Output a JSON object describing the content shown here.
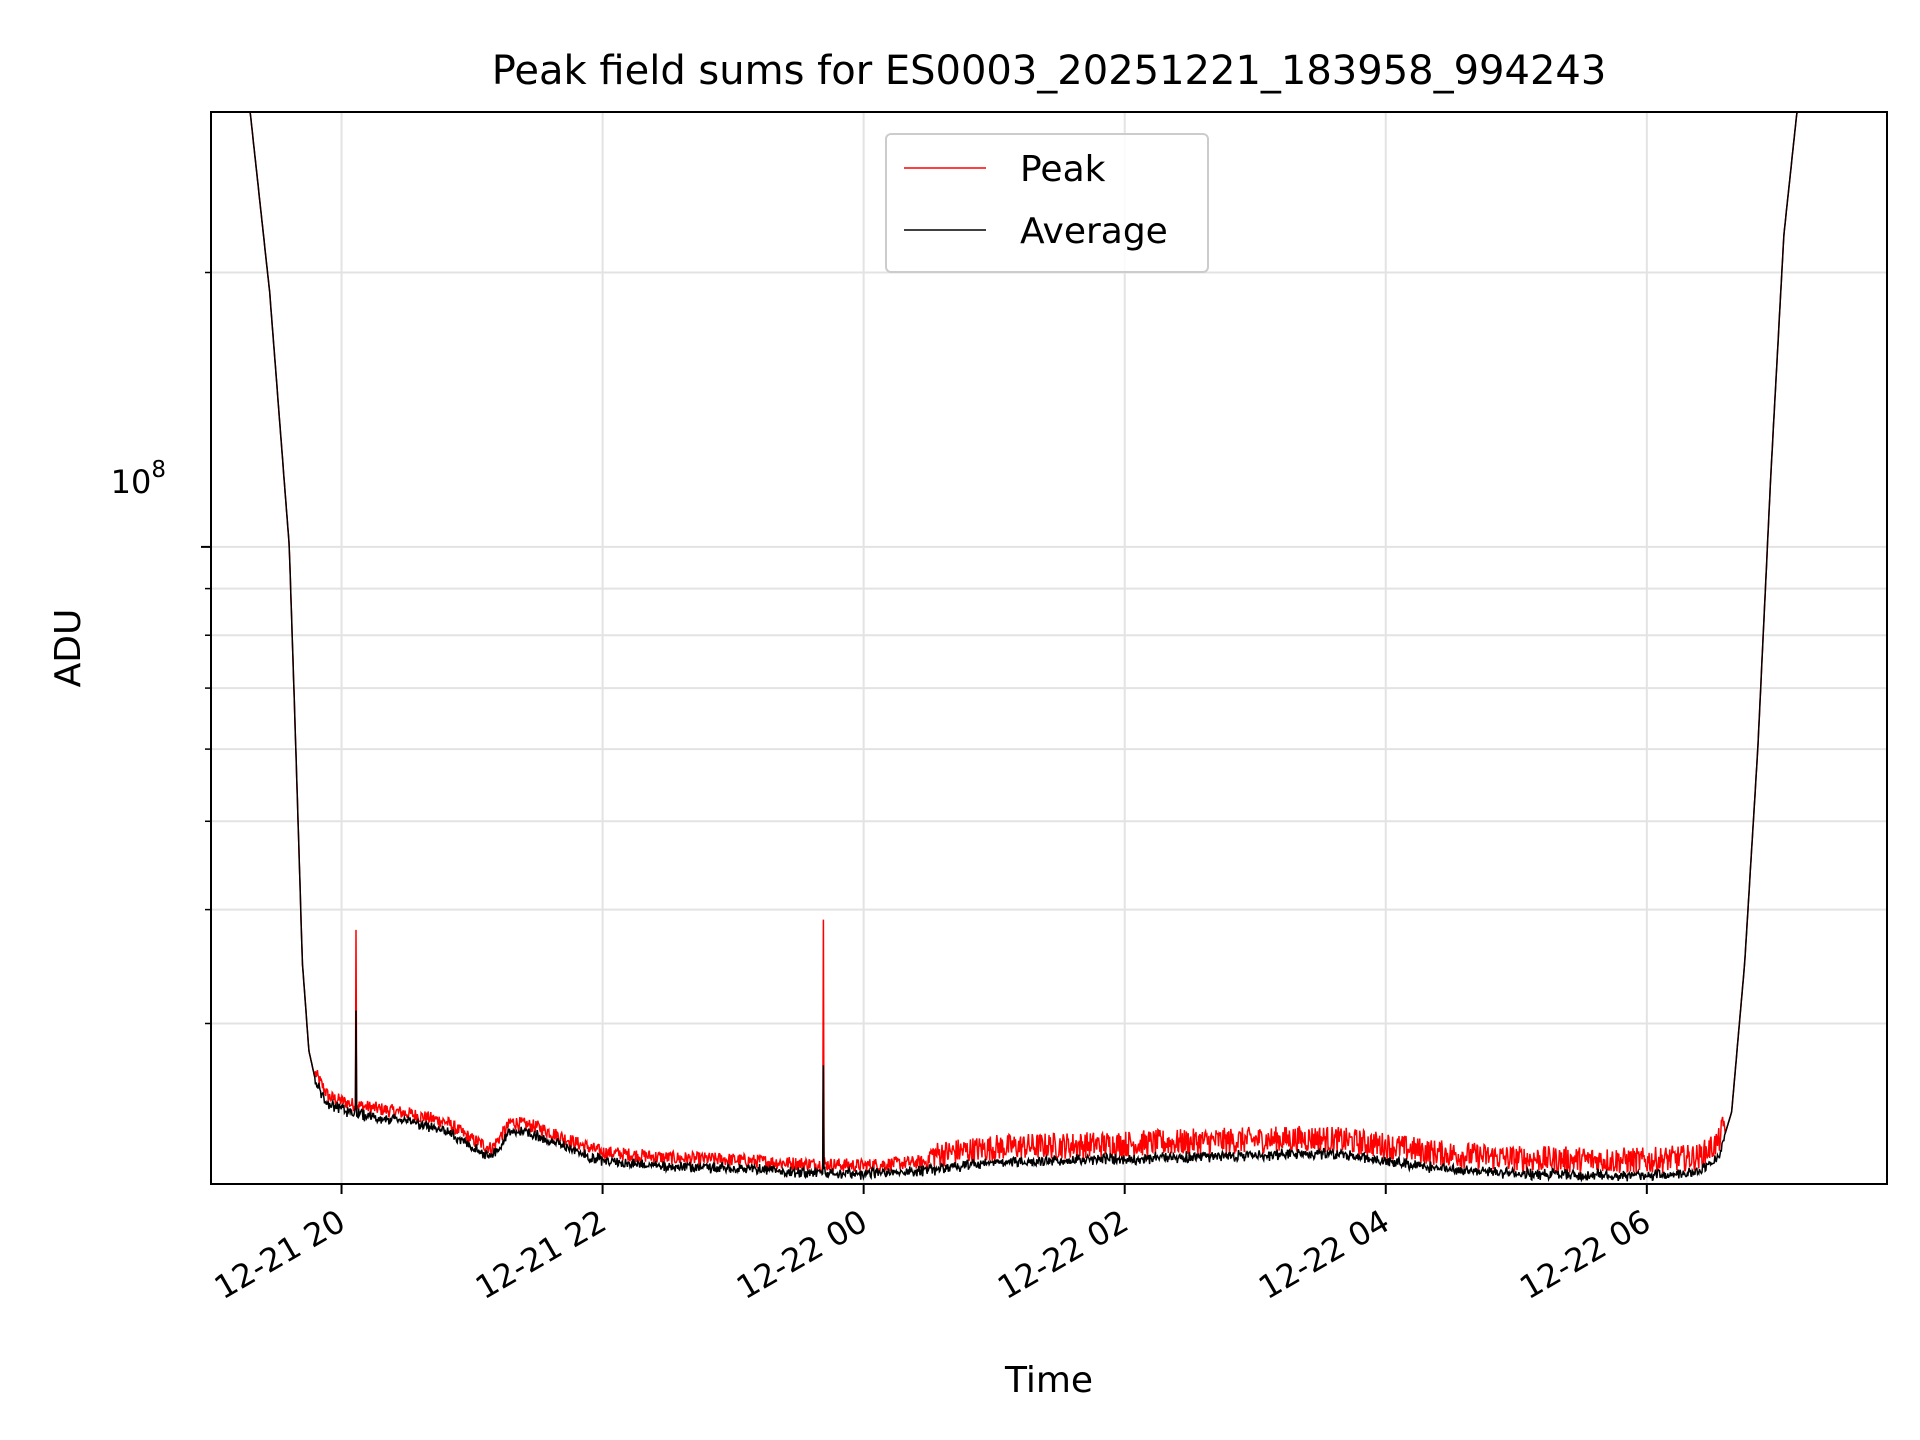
{
  "chart_data": {
    "type": "line",
    "title": "Peak field sums for ES0003_20251221_183958_994243",
    "xlabel": "Time",
    "ylabel": "ADU",
    "y_scale": "log",
    "ylim": [
      20000000,
      300000000
    ],
    "y_major_tick": {
      "label_base": "10",
      "label_exp": "8"
    },
    "y_major_value": 100000000,
    "y_minor_ticks": [
      30000000,
      40000000,
      50000000,
      60000000,
      70000000,
      80000000,
      90000000,
      200000000
    ],
    "xlim_hours": [
      0.0,
      12.84
    ],
    "x_ticks": [
      {
        "hour": 1.0,
        "label": "12-21 20"
      },
      {
        "hour": 3.0,
        "label": "12-21 22"
      },
      {
        "hour": 5.0,
        "label": "12-22 00"
      },
      {
        "hour": 7.0,
        "label": "12-22 02"
      },
      {
        "hour": 9.0,
        "label": "12-22 04"
      },
      {
        "hour": 11.0,
        "label": "12-22 06"
      }
    ],
    "legend": {
      "position": "upper-center",
      "entries": [
        "Peak",
        "Average"
      ]
    },
    "grid": true,
    "series": [
      {
        "name": "Peak",
        "color": "#ff0000",
        "noise_amplitude_pct": 7,
        "spikes": [
          {
            "hour": 1.11,
            "value": 38000000
          },
          {
            "hour": 4.69,
            "value": 39000000
          }
        ]
      },
      {
        "name": "Average",
        "color": "#000000",
        "noise_amplitude_pct": 4,
        "spikes": [
          {
            "hour": 1.11,
            "value": 31000000
          },
          {
            "hour": 4.69,
            "value": 27000000
          }
        ]
      }
    ],
    "baseline_points": [
      [
        0.0,
        300000000
      ],
      [
        0.3,
        300000000
      ],
      [
        0.45,
        190000000
      ],
      [
        0.6,
        100000000
      ],
      [
        0.65,
        60000000
      ],
      [
        0.7,
        35000000
      ],
      [
        0.75,
        28000000
      ],
      [
        0.8,
        26000000
      ],
      [
        0.9,
        24500000
      ],
      [
        1.1,
        24000000
      ],
      [
        1.5,
        23500000
      ],
      [
        1.8,
        23000000
      ],
      [
        2.0,
        22000000
      ],
      [
        2.15,
        21500000
      ],
      [
        2.3,
        23000000
      ],
      [
        2.5,
        22700000
      ],
      [
        2.8,
        21800000
      ],
      [
        3.0,
        21300000
      ],
      [
        3.5,
        21000000
      ],
      [
        4.0,
        20900000
      ],
      [
        4.5,
        20700000
      ],
      [
        5.0,
        20600000
      ],
      [
        5.5,
        20800000
      ],
      [
        6.0,
        21200000
      ],
      [
        6.5,
        21300000
      ],
      [
        7.0,
        21400000
      ],
      [
        7.5,
        21500000
      ],
      [
        8.0,
        21600000
      ],
      [
        8.5,
        21700000
      ],
      [
        8.9,
        21400000
      ],
      [
        9.4,
        20900000
      ],
      [
        10.0,
        20600000
      ],
      [
        11.0,
        20500000
      ],
      [
        11.4,
        20700000
      ],
      [
        11.55,
        21500000
      ],
      [
        11.65,
        24000000
      ],
      [
        11.75,
        35000000
      ],
      [
        11.85,
        60000000
      ],
      [
        11.95,
        120000000
      ],
      [
        12.05,
        220000000
      ],
      [
        12.15,
        300000000
      ],
      [
        12.84,
        300000000
      ]
    ]
  }
}
